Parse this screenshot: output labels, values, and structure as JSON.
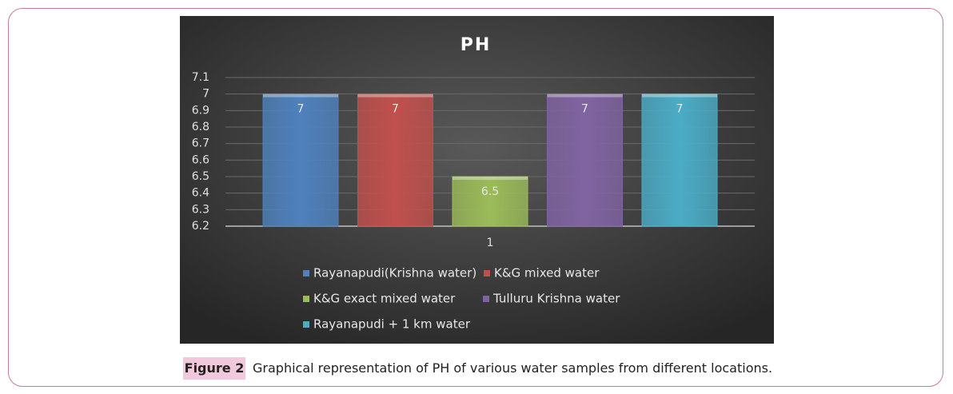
{
  "chart_data": {
    "type": "bar",
    "title": "PH",
    "categories": [
      "1"
    ],
    "series": [
      {
        "name": "Rayanapudi(Krishna water)",
        "color": "#4f81bd",
        "values": [
          7
        ]
      },
      {
        "name": "K&G mixed water",
        "color": "#c0504d",
        "values": [
          7
        ]
      },
      {
        "name": "K&G exact mixed water",
        "color": "#9bbb59",
        "values": [
          6.5
        ]
      },
      {
        "name": "Tulluru Krishna water",
        "color": "#8064a2",
        "values": [
          7
        ]
      },
      {
        "name": "Rayanapudi + 1 km water",
        "color": "#4bacc6",
        "values": [
          7
        ]
      }
    ],
    "ylim": [
      6.2,
      7.1
    ],
    "yticks": [
      6.2,
      6.3,
      6.4,
      6.5,
      6.6,
      6.7,
      6.8,
      6.9,
      7,
      7.1
    ],
    "grid": true,
    "legend": "bottom",
    "data_labels": true
  },
  "caption": {
    "label": "Figure 2",
    "text": "Graphical representation of PH of various water samples from different locations."
  }
}
